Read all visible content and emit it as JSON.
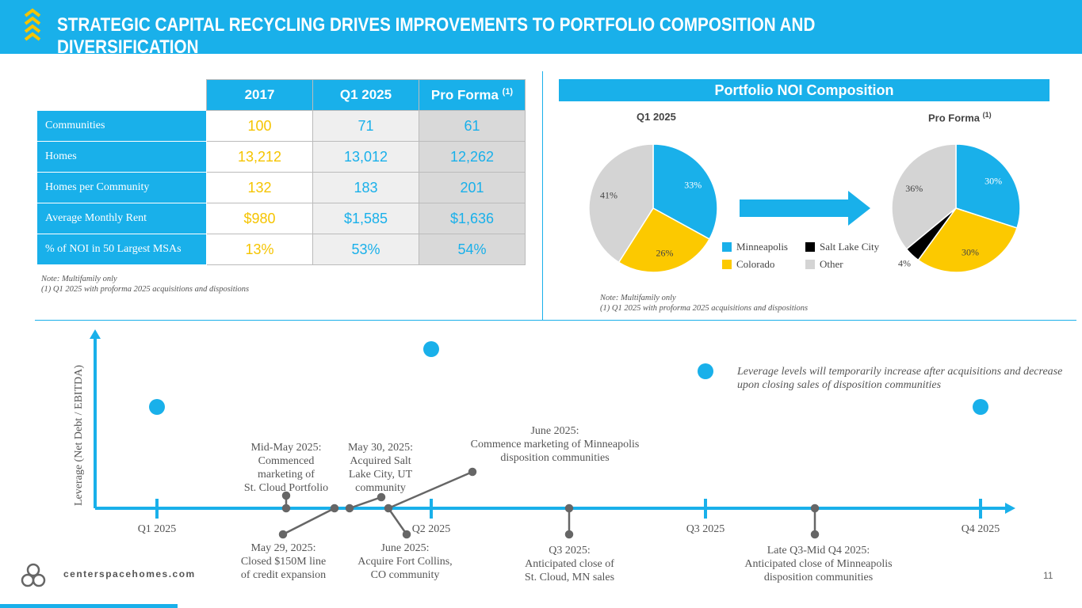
{
  "header": {
    "title": "STRATEGIC CAPITAL RECYCLING DRIVES IMPROVEMENTS TO PORTFOLIO COMPOSITION AND DIVERSIFICATION"
  },
  "table": {
    "columns": [
      "2017",
      "Q1 2025",
      "Pro Forma"
    ],
    "pro_forma_sup": "(1)",
    "rows": [
      {
        "label": "Communities",
        "values": [
          "100",
          "71",
          "61"
        ]
      },
      {
        "label": "Homes",
        "values": [
          "13,212",
          "13,012",
          "12,262"
        ]
      },
      {
        "label": "Homes per Community",
        "values": [
          "132",
          "183",
          "201"
        ]
      },
      {
        "label": "Average Monthly Rent",
        "values": [
          "$980",
          "$1,585",
          "$1,636"
        ]
      },
      {
        "label": "% of NOI in 50 Largest MSAs",
        "values": [
          "13%",
          "53%",
          "54%"
        ]
      }
    ],
    "note1": "Note: Multifamily only",
    "note2": "(1)   Q1 2025 with proforma 2025 acquisitions and dispositions"
  },
  "noi": {
    "title": "Portfolio NOI Composition",
    "left_label": "Q1 2025",
    "right_label": "Pro Forma",
    "right_sup": "(1)",
    "legend": [
      {
        "name": "Minneapolis",
        "color": "#19b0ea"
      },
      {
        "name": "Salt Lake City",
        "color": "#000000"
      },
      {
        "name": "Colorado",
        "color": "#fcc900"
      },
      {
        "name": "Other",
        "color": "#d4d4d4"
      }
    ],
    "note1": "Note: Multifamily only",
    "note2": "(1)   Q1 2025 with proforma 2025 acquisitions and dispositions"
  },
  "chart_data": [
    {
      "type": "pie",
      "title": "Q1 2025",
      "labels": [
        "Minneapolis",
        "Colorado",
        "Other"
      ],
      "values": [
        33,
        26,
        41
      ],
      "colors": [
        "#19b0ea",
        "#fcc900",
        "#d4d4d4"
      ],
      "display": [
        "33%",
        "26%",
        "41%"
      ]
    },
    {
      "type": "pie",
      "title": "Pro Forma (1)",
      "labels": [
        "Minneapolis",
        "Colorado",
        "Salt Lake City",
        "Other"
      ],
      "values": [
        30,
        30,
        4,
        36
      ],
      "colors": [
        "#19b0ea",
        "#fcc900",
        "#000000",
        "#d4d4d4"
      ],
      "display": [
        "30%",
        "30%",
        "4%",
        "36%"
      ]
    }
  ],
  "timeline": {
    "ylabel": "Leverage (Net Debt / EBITDA)",
    "quarters": [
      "Q1 2025",
      "Q2 2025",
      "Q3 2025",
      "Q4 2025"
    ],
    "leverage_note": "Leverage levels will temporarily increase after acquisitions and decrease upon closing sales of disposition communities",
    "events": [
      [
        "Mid-May 2025:",
        "Commenced",
        "marketing of",
        "St. Cloud Portfolio"
      ],
      [
        "May 30, 2025:",
        "Acquired Salt",
        "Lake City, UT",
        "community"
      ],
      [
        "June 2025:",
        "Commence marketing of Minneapolis",
        "disposition communities"
      ],
      [
        "May 29, 2025:",
        "Closed $150M line",
        "of credit expansion"
      ],
      [
        "June 2025:",
        "Acquire Fort Collins,",
        "CO community"
      ],
      [
        "Q3 2025:",
        "Anticipated close of",
        "St. Cloud, MN sales"
      ],
      [
        "Late Q3-Mid Q4 2025:",
        "Anticipated close of Minneapolis",
        "disposition communities"
      ]
    ]
  },
  "footer": {
    "site": "centerspacehomes.com",
    "page": "11"
  }
}
